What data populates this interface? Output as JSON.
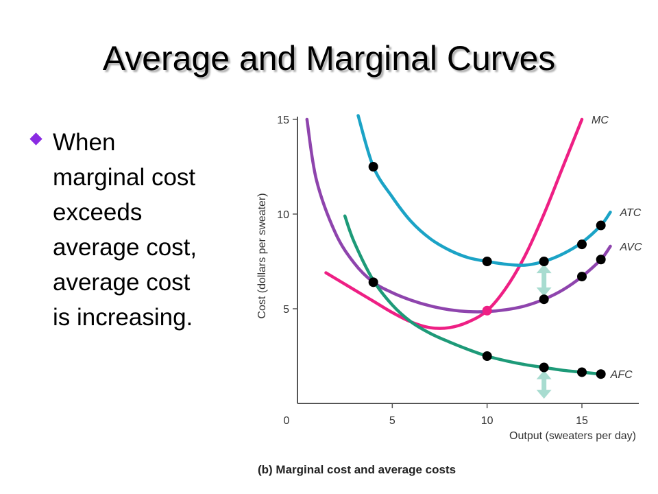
{
  "slide": {
    "title": "Average and Marginal Curves",
    "bullet_text": "When marginal cost exceeds average cost, average cost is increasing."
  },
  "chart_data": {
    "type": "line",
    "caption": "(b) Marginal cost and average costs",
    "xlabel": "Output (sweaters per day)",
    "ylabel": "Cost (dollars per sweater)",
    "xlim": [
      0,
      18
    ],
    "ylim": [
      0,
      15
    ],
    "x_ticks": [
      0,
      5,
      10,
      15
    ],
    "y_ticks": [
      5,
      10,
      15
    ],
    "grid": false,
    "series": [
      {
        "name": "MC",
        "color": "#ee1f84",
        "x": [
          1.5,
          3,
          4,
          5,
          6,
          7,
          8,
          9,
          10,
          11,
          12,
          13,
          14,
          15
        ],
        "y": [
          6.9,
          6.0,
          5.4,
          4.8,
          4.3,
          4.0,
          4.0,
          4.3,
          4.9,
          6.1,
          7.8,
          10.0,
          12.5,
          15.0
        ]
      },
      {
        "name": "ATC",
        "color": "#1ba3c6",
        "x": [
          3.2,
          4,
          5,
          6,
          7,
          8,
          9,
          10,
          11,
          12,
          13,
          14,
          15,
          16,
          16.5
        ],
        "y": [
          15.2,
          12.5,
          10.9,
          9.6,
          8.7,
          8.1,
          7.7,
          7.5,
          7.35,
          7.3,
          7.5,
          7.9,
          8.5,
          9.4,
          10.1
        ]
      },
      {
        "name": "AVC",
        "color": "#8e44ad",
        "x": [
          0.5,
          1,
          2,
          3,
          4,
          5,
          6,
          7,
          8,
          9,
          10,
          11,
          12,
          13,
          14,
          15,
          16,
          16.5
        ],
        "y": [
          15.0,
          11.8,
          9.0,
          7.4,
          6.4,
          5.85,
          5.45,
          5.15,
          4.95,
          4.85,
          4.85,
          4.95,
          5.15,
          5.5,
          6.0,
          6.7,
          7.6,
          8.3
        ]
      },
      {
        "name": "AFC",
        "color": "#1d9a78",
        "x": [
          2.5,
          3,
          4,
          5,
          6,
          7,
          8,
          9,
          10,
          11,
          12,
          13,
          14,
          15,
          16
        ],
        "y": [
          9.9,
          8.5,
          6.5,
          5.2,
          4.3,
          3.7,
          3.25,
          2.85,
          2.5,
          2.25,
          2.05,
          1.9,
          1.75,
          1.65,
          1.55
        ]
      }
    ],
    "markers": [
      {
        "x": 4,
        "y": 12.5
      },
      {
        "x": 10,
        "y": 7.5
      },
      {
        "x": 13,
        "y": 7.5
      },
      {
        "x": 15,
        "y": 8.4
      },
      {
        "x": 16,
        "y": 9.4
      },
      {
        "x": 4,
        "y": 6.4
      },
      {
        "x": 13,
        "y": 5.5
      },
      {
        "x": 15,
        "y": 6.7
      },
      {
        "x": 16,
        "y": 7.6
      },
      {
        "x": 10,
        "y": 2.5
      },
      {
        "x": 13,
        "y": 1.9
      },
      {
        "x": 15,
        "y": 1.65
      },
      {
        "x": 16,
        "y": 1.55
      }
    ],
    "intersection_marker": {
      "x": 10,
      "y": 4.9,
      "color": "#ee1f84"
    },
    "gap_arrows": [
      {
        "x": 13,
        "y_from": 5.65,
        "y_to": 7.35,
        "color": "#a8dcd0"
      },
      {
        "x": 13,
        "y_from": 0.25,
        "y_to": 1.75,
        "color": "#a8dcd0"
      }
    ]
  }
}
